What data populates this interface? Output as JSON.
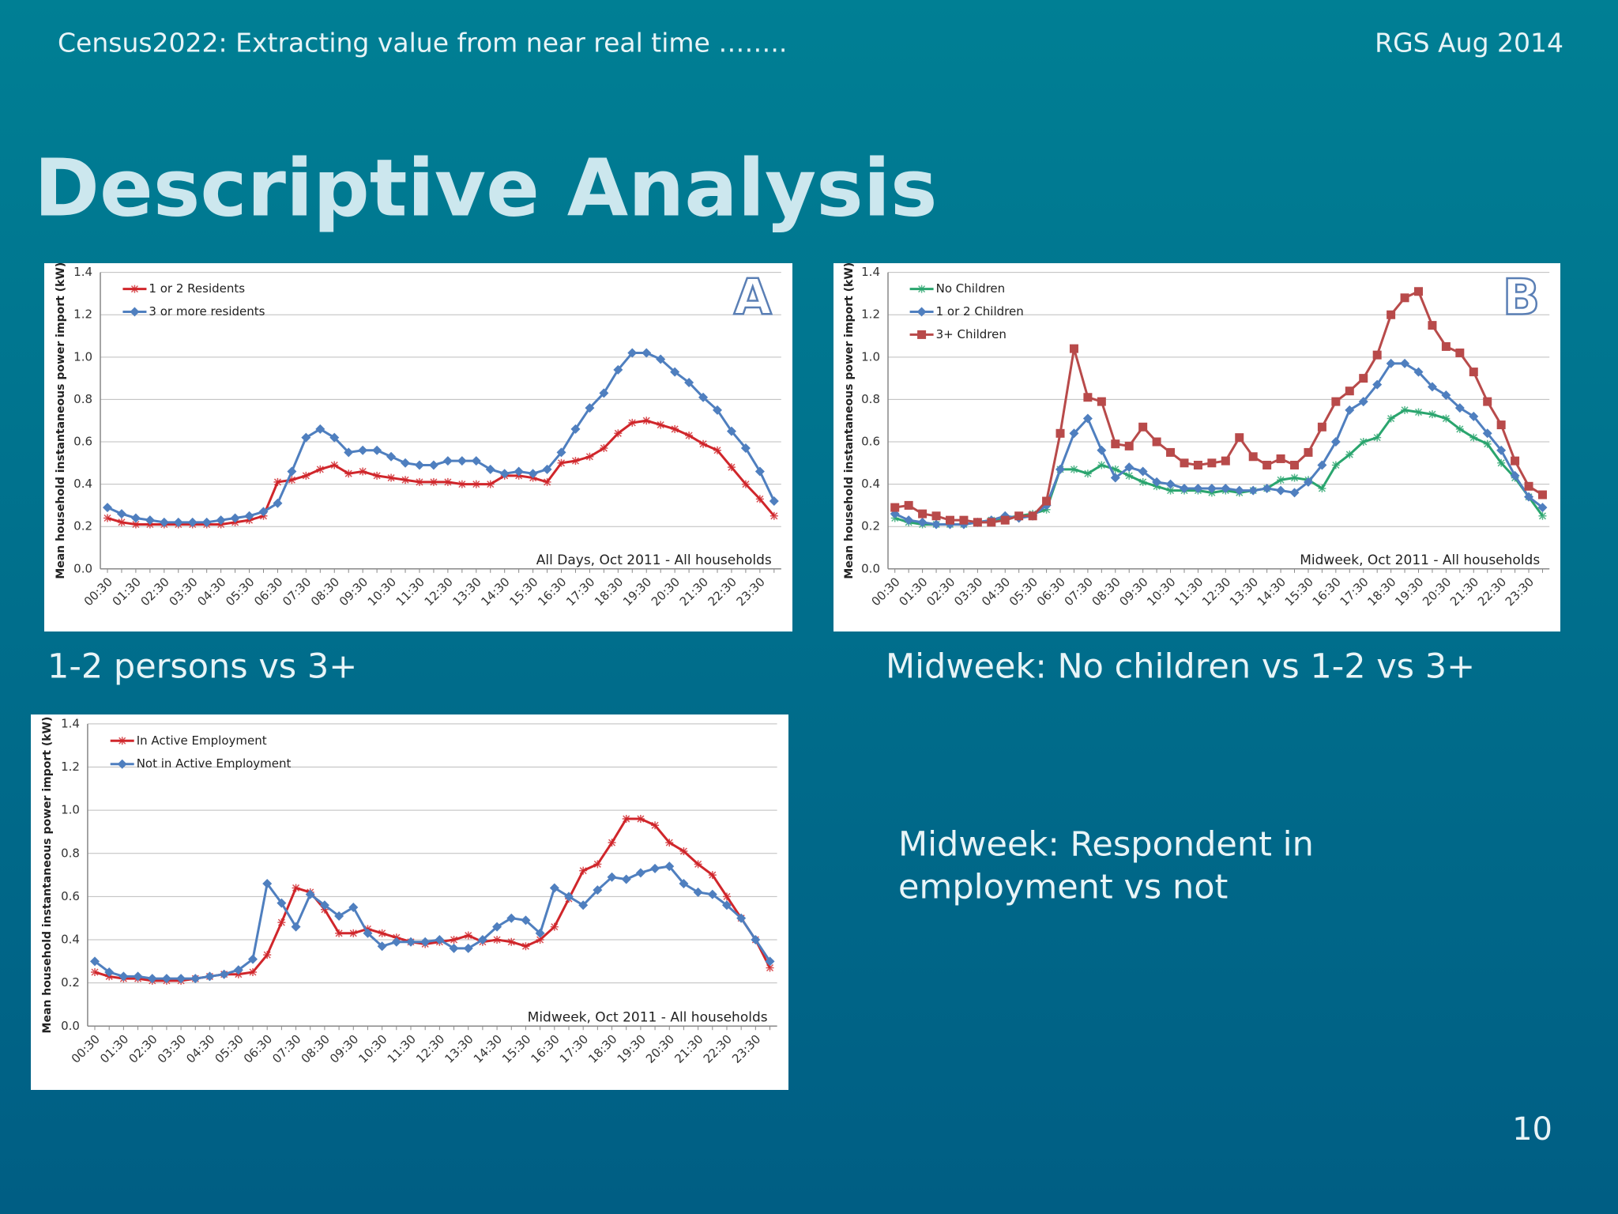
{
  "header": {
    "left": "Census2022: Extracting value from near real time ……..",
    "right": "RGS Aug 2014"
  },
  "title": "Descriptive Analysis",
  "captions": {
    "a": "1-2 persons vs 3+",
    "b": "Midweek: No children vs 1-2 vs 3+",
    "c": [
      "Midweek: Respondent in",
      "employment vs not"
    ]
  },
  "page_number": "10",
  "chart_data": [
    {
      "type": "line",
      "letter": "A",
      "y_label": "Mean household instantaneous power import (kW)",
      "annotation": "All Days, Oct 2011 - All households",
      "categories": [
        "00:30",
        null,
        "01:30",
        null,
        "02:30",
        null,
        "03:30",
        null,
        "04:30",
        null,
        "05:30",
        null,
        "06:30",
        null,
        "07:30",
        null,
        "08:30",
        null,
        "09:30",
        null,
        "10:30",
        null,
        "11:30",
        null,
        "12:30",
        null,
        "13:30",
        null,
        "14:30",
        null,
        "15:30",
        null,
        "16:30",
        null,
        "17:30",
        null,
        "18:30",
        null,
        "19:30",
        null,
        "20:30",
        null,
        "21:30",
        null,
        "22:30",
        null,
        "23:30",
        null
      ],
      "ylim": [
        0,
        1.4
      ],
      "yticks": [
        {
          "value": 0,
          "label": "0.0"
        },
        0.2,
        0.4,
        0.6,
        0.8,
        {
          "value": 1,
          "label": "1.0"
        },
        1.2,
        1.4
      ],
      "grid": true,
      "series": [
        {
          "name": "1 or 2 Residents",
          "color": "#d0262b",
          "marker": "asterisk",
          "values": [
            0.24,
            0.22,
            0.21,
            0.21,
            0.21,
            0.21,
            0.21,
            0.21,
            0.21,
            0.22,
            0.23,
            0.25,
            0.41,
            0.42,
            0.44,
            0.47,
            0.49,
            0.45,
            0.46,
            0.44,
            0.43,
            0.42,
            0.41,
            0.41,
            0.41,
            0.4,
            0.4,
            0.4,
            0.44,
            0.44,
            0.43,
            0.41,
            0.5,
            0.51,
            0.53,
            0.57,
            0.64,
            0.69,
            0.7,
            0.68,
            0.66,
            0.63,
            0.59,
            0.56,
            0.48,
            0.4,
            0.33,
            0.25
          ]
        },
        {
          "name": "3 or more residents",
          "color": "#4f7fbf",
          "marker": "diamond",
          "values": [
            0.29,
            0.26,
            0.24,
            0.23,
            0.22,
            0.22,
            0.22,
            0.22,
            0.23,
            0.24,
            0.25,
            0.27,
            0.31,
            0.46,
            0.62,
            0.66,
            0.62,
            0.55,
            0.56,
            0.56,
            0.53,
            0.5,
            0.49,
            0.49,
            0.51,
            0.51,
            0.51,
            0.47,
            0.45,
            0.46,
            0.45,
            0.47,
            0.55,
            0.66,
            0.76,
            0.83,
            0.94,
            1.02,
            1.02,
            0.99,
            0.93,
            0.88,
            0.81,
            0.75,
            0.65,
            0.57,
            0.46,
            0.32
          ]
        }
      ]
    },
    {
      "type": "line",
      "letter": "B",
      "y_label": "Mean household instantaneous power import (kW)",
      "annotation": "Midweek, Oct 2011 - All households",
      "categories": [
        "00:30",
        null,
        "01:30",
        null,
        "02:30",
        null,
        "03:30",
        null,
        "04:30",
        null,
        "05:30",
        null,
        "06:30",
        null,
        "07:30",
        null,
        "08:30",
        null,
        "09:30",
        null,
        "10:30",
        null,
        "11:30",
        null,
        "12:30",
        null,
        "13:30",
        null,
        "14:30",
        null,
        "15:30",
        null,
        "16:30",
        null,
        "17:30",
        null,
        "18:30",
        null,
        "19:30",
        null,
        "20:30",
        null,
        "21:30",
        null,
        "22:30",
        null,
        "23:30",
        null
      ],
      "ylim": [
        0,
        1.4
      ],
      "yticks": [
        {
          "value": 0,
          "label": "0.0"
        },
        0.2,
        0.4,
        0.6,
        0.8,
        {
          "value": 1,
          "label": "1.0"
        },
        1.2,
        1.4
      ],
      "grid": true,
      "series": [
        {
          "name": "No Children",
          "color": "#2aa56e",
          "marker": "asterisk",
          "values": [
            0.24,
            0.22,
            0.21,
            0.21,
            0.21,
            0.21,
            0.22,
            0.23,
            0.24,
            0.25,
            0.26,
            0.28,
            0.47,
            0.47,
            0.45,
            0.49,
            0.47,
            0.44,
            0.41,
            0.39,
            0.37,
            0.37,
            0.37,
            0.36,
            0.37,
            0.36,
            0.37,
            0.38,
            0.42,
            0.43,
            0.42,
            0.38,
            0.49,
            0.54,
            0.6,
            0.62,
            0.71,
            0.75,
            0.74,
            0.73,
            0.71,
            0.66,
            0.62,
            0.59,
            0.5,
            0.43,
            0.34,
            0.25
          ]
        },
        {
          "name": "1 or 2 Children",
          "color": "#4f7fbf",
          "marker": "diamond",
          "values": [
            0.26,
            0.23,
            0.22,
            0.21,
            0.21,
            0.21,
            0.22,
            0.23,
            0.25,
            0.24,
            0.25,
            0.3,
            0.47,
            0.64,
            0.71,
            0.56,
            0.43,
            0.48,
            0.46,
            0.41,
            0.4,
            0.38,
            0.38,
            0.38,
            0.38,
            0.37,
            0.37,
            0.38,
            0.37,
            0.36,
            0.41,
            0.49,
            0.6,
            0.75,
            0.79,
            0.87,
            0.97,
            0.97,
            0.93,
            0.86,
            0.82,
            0.76,
            0.72,
            0.64,
            0.56,
            0.44,
            0.34,
            0.29
          ]
        },
        {
          "name": "3+ Children",
          "color": "#b84a4a",
          "marker": "square",
          "values": [
            0.29,
            0.3,
            0.26,
            0.25,
            0.23,
            0.23,
            0.22,
            0.22,
            0.23,
            0.25,
            0.25,
            0.32,
            0.64,
            1.04,
            0.81,
            0.79,
            0.59,
            0.58,
            0.67,
            0.6,
            0.55,
            0.5,
            0.49,
            0.5,
            0.51,
            0.62,
            0.53,
            0.49,
            0.52,
            0.49,
            0.55,
            0.67,
            0.79,
            0.84,
            0.9,
            1.01,
            1.2,
            1.28,
            1.31,
            1.15,
            1.05,
            1.02,
            0.93,
            0.79,
            0.68,
            0.51,
            0.39,
            0.35
          ]
        }
      ]
    },
    {
      "type": "line",
      "y_label": "Mean household instantaneous power import (kW)",
      "annotation": "Midweek, Oct 2011 - All households",
      "categories": [
        "00:30",
        null,
        "01:30",
        null,
        "02:30",
        null,
        "03:30",
        null,
        "04:30",
        null,
        "05:30",
        null,
        "06:30",
        null,
        "07:30",
        null,
        "08:30",
        null,
        "09:30",
        null,
        "10:30",
        null,
        "11:30",
        null,
        "12:30",
        null,
        "13:30",
        null,
        "14:30",
        null,
        "15:30",
        null,
        "16:30",
        null,
        "17:30",
        null,
        "18:30",
        null,
        "19:30",
        null,
        "20:30",
        null,
        "21:30",
        null,
        "22:30",
        null,
        "23:30",
        null
      ],
      "ylim": [
        0,
        1.4
      ],
      "yticks": [
        {
          "value": 0,
          "label": "0.0"
        },
        0.2,
        0.4,
        0.6,
        0.8,
        {
          "value": 1,
          "label": "1.0"
        },
        1.2,
        1.4
      ],
      "grid": true,
      "series": [
        {
          "name": "In Active Employment",
          "color": "#d0262b",
          "marker": "asterisk",
          "values": [
            0.25,
            0.23,
            0.22,
            0.22,
            0.21,
            0.21,
            0.21,
            0.22,
            0.23,
            0.24,
            0.24,
            0.25,
            0.33,
            0.48,
            0.64,
            0.62,
            0.54,
            0.43,
            0.43,
            0.45,
            0.43,
            0.41,
            0.39,
            0.38,
            0.39,
            0.4,
            0.42,
            0.39,
            0.4,
            0.39,
            0.37,
            0.4,
            0.46,
            0.59,
            0.72,
            0.75,
            0.85,
            0.96,
            0.96,
            0.93,
            0.85,
            0.81,
            0.75,
            0.7,
            0.6,
            0.5,
            0.4,
            0.27
          ]
        },
        {
          "name": "Not in Active Employment",
          "color": "#4f7fbf",
          "marker": "diamond",
          "values": [
            0.3,
            0.25,
            0.23,
            0.23,
            0.22,
            0.22,
            0.22,
            0.22,
            0.23,
            0.24,
            0.26,
            0.31,
            0.66,
            0.57,
            0.46,
            0.61,
            0.56,
            0.51,
            0.55,
            0.43,
            0.37,
            0.39,
            0.39,
            0.39,
            0.4,
            0.36,
            0.36,
            0.4,
            0.46,
            0.5,
            0.49,
            0.43,
            0.64,
            0.6,
            0.56,
            0.63,
            0.69,
            0.68,
            0.71,
            0.73,
            0.74,
            0.66,
            0.62,
            0.61,
            0.56,
            0.5,
            0.4,
            0.3
          ]
        }
      ]
    }
  ]
}
